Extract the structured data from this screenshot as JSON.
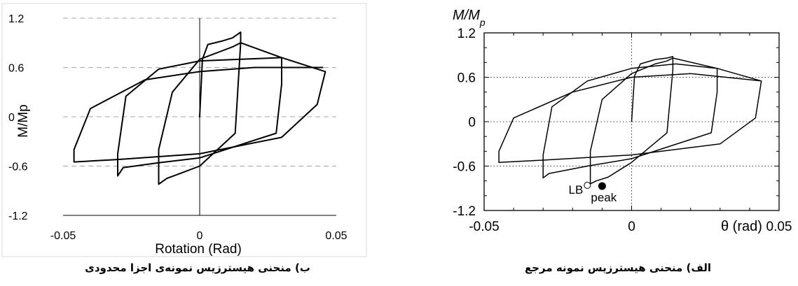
{
  "chart_data": [
    {
      "type": "line",
      "panel": "left",
      "xlabel": "Rotation (Rad)",
      "ylabel": "M/Mp",
      "xlim": [
        -0.05,
        0.05
      ],
      "ylim": [
        -1.2,
        1.2
      ],
      "x_ticks": [
        "-0.05",
        "0",
        "0.05"
      ],
      "y_ticks": [
        "1.2",
        "0.6",
        "0",
        "-0.6",
        "-1.2"
      ],
      "grid": "horizontal dashed",
      "caption": "ب) منحنی هیسترزیس نمونه‌ی اجزا محدودی",
      "series": [
        {
          "x": [
            0,
            0.001,
            0.003,
            0.008,
            0.012,
            0.015,
            0.015,
            0.013,
            0.0,
            -0.008,
            -0.012,
            -0.015,
            -0.015,
            -0.01,
            0.0,
            0.008,
            0.012,
            0.015
          ],
          "y": [
            0,
            0.7,
            0.88,
            0.92,
            0.96,
            1.03,
            0.9,
            -0.2,
            -0.6,
            -0.7,
            -0.75,
            -0.82,
            -0.4,
            0.3,
            0.7,
            0.8,
            0.85,
            0.9
          ]
        },
        {
          "x": [
            0.015,
            0.03,
            0.03,
            0.028,
            0.0,
            -0.015,
            -0.028,
            -0.03,
            -0.03,
            -0.027,
            -0.015,
            0.0,
            0.015,
            0.03
          ],
          "y": [
            0.9,
            0.72,
            0.4,
            -0.2,
            -0.5,
            -0.56,
            -0.62,
            -0.72,
            -0.45,
            0.25,
            0.58,
            0.68,
            0.7,
            0.72
          ]
        },
        {
          "x": [
            0.03,
            0.046,
            0.043,
            0.03,
            0.0,
            -0.03,
            -0.046,
            -0.046,
            -0.04,
            -0.02,
            0.0,
            0.02,
            0.045
          ],
          "y": [
            0.72,
            0.55,
            0.15,
            -0.25,
            -0.45,
            -0.52,
            -0.55,
            -0.4,
            0.1,
            0.45,
            0.55,
            0.6,
            0.6
          ]
        }
      ]
    },
    {
      "type": "line",
      "panel": "right",
      "title": "M/M",
      "title_sub": "p",
      "xlabel": "θ (rad)",
      "xlim": [
        -0.05,
        0.05
      ],
      "ylim": [
        -1.2,
        1.2
      ],
      "x_ticks": [
        "-0.05",
        "0",
        "0.05"
      ],
      "y_ticks": [
        "1.2",
        "0.6",
        "0",
        "-0.6",
        "-1.2"
      ],
      "grid": "dotted",
      "annotations": [
        {
          "text": "LB",
          "x": -0.015,
          "y": -0.86
        },
        {
          "text": "peak",
          "x": -0.01,
          "y": -0.87
        }
      ],
      "caption": "الف) منحنی هیسترزیس نمونه مرجع",
      "series": [
        {
          "x": [
            0,
            0.001,
            0.003,
            0.008,
            0.012,
            0.014,
            0.014,
            0.012,
            0.0,
            -0.008,
            -0.012,
            -0.014,
            -0.014,
            -0.01,
            0.0,
            0.008,
            0.012,
            0.014
          ],
          "y": [
            0,
            0.62,
            0.78,
            0.84,
            0.86,
            0.88,
            0.7,
            -0.15,
            -0.55,
            -0.75,
            -0.8,
            -0.84,
            -0.4,
            0.3,
            0.65,
            0.78,
            0.82,
            0.86
          ]
        },
        {
          "x": [
            0.014,
            0.029,
            0.029,
            0.027,
            0.0,
            -0.015,
            -0.028,
            -0.03,
            -0.03,
            -0.027,
            -0.015,
            0.0,
            0.015,
            0.029
          ],
          "y": [
            0.86,
            0.72,
            0.4,
            -0.15,
            -0.5,
            -0.6,
            -0.7,
            -0.76,
            -0.45,
            0.2,
            0.55,
            0.72,
            0.78,
            0.72
          ]
        },
        {
          "x": [
            0.029,
            0.044,
            0.042,
            0.03,
            0.0,
            -0.03,
            -0.045,
            -0.045,
            -0.04,
            -0.02,
            0.0,
            0.02,
            0.044
          ],
          "y": [
            0.72,
            0.55,
            0.05,
            -0.3,
            -0.45,
            -0.52,
            -0.55,
            -0.4,
            0.05,
            0.4,
            0.6,
            0.65,
            0.55
          ]
        }
      ]
    }
  ]
}
